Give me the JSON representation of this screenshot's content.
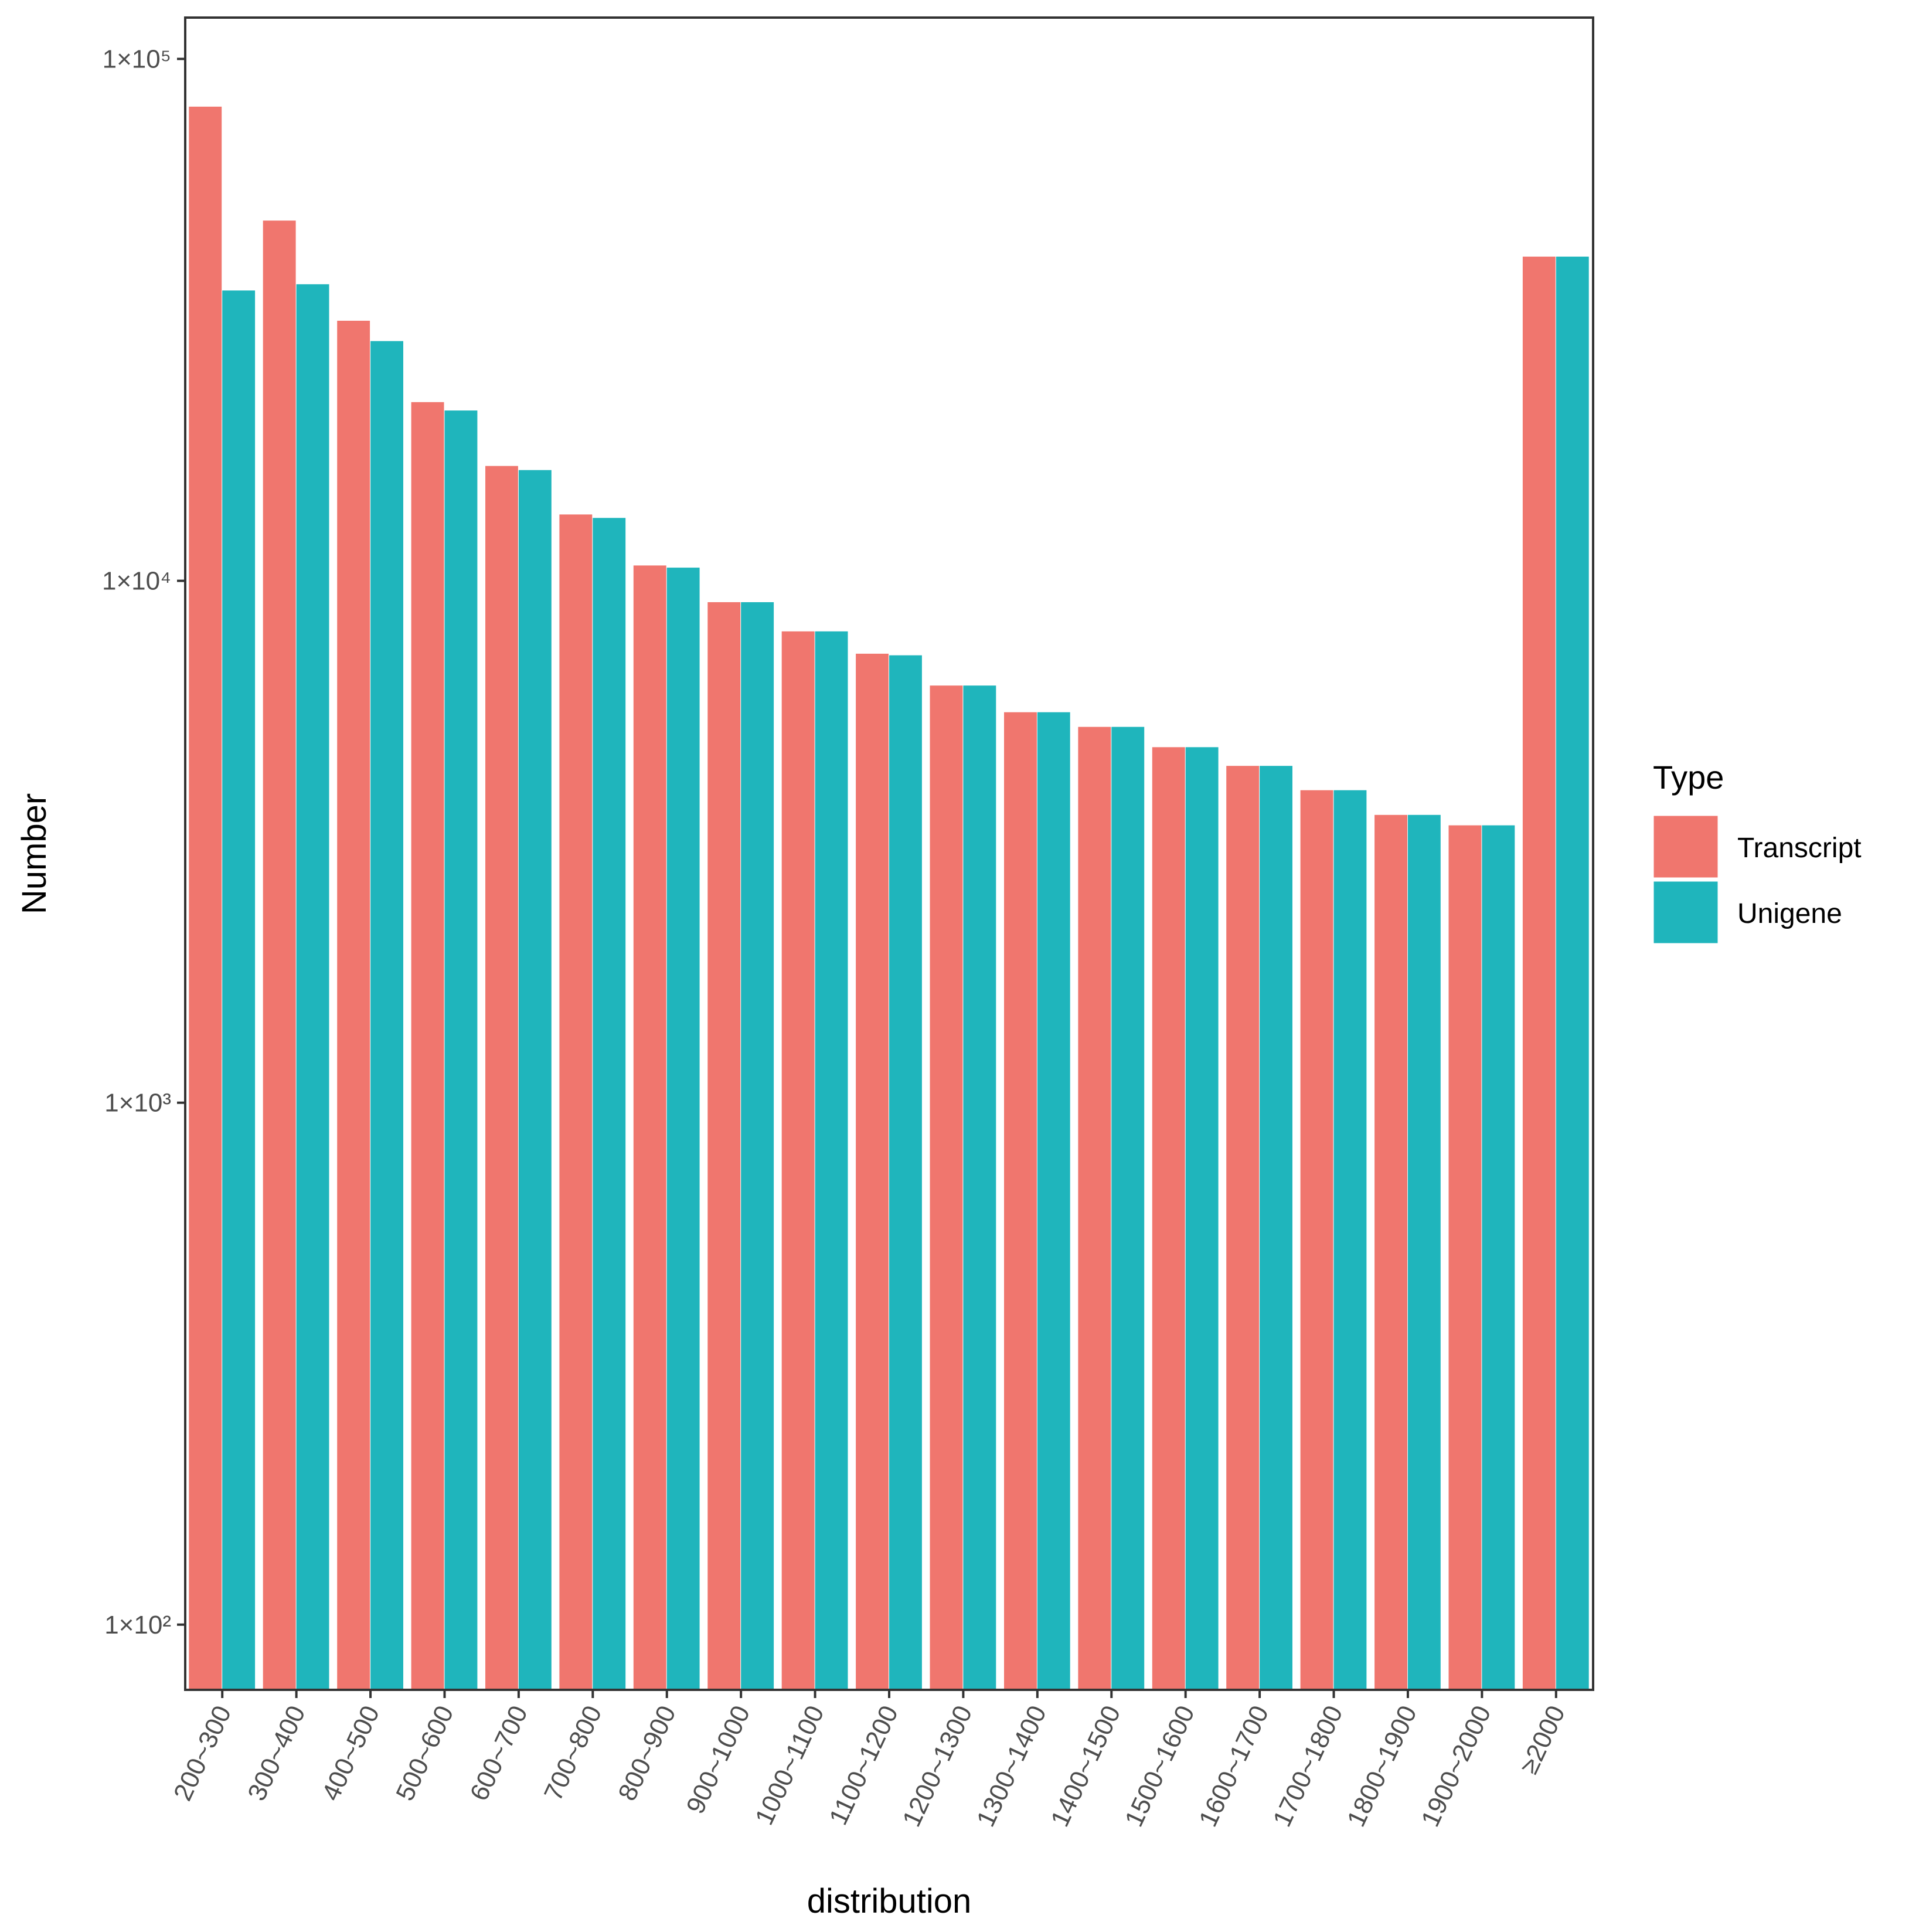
{
  "chart_data": {
    "type": "bar",
    "title": "",
    "xlabel": "distribution",
    "ylabel": "Number",
    "y_scale": "log10",
    "ylim": [
      75,
      120000
    ],
    "grid": false,
    "legend_position": "right",
    "legend_title": "Type",
    "categories": [
      "200~300",
      "300~400",
      "400~500",
      "500~600",
      "600~700",
      "700~800",
      "800~900",
      "900~1000",
      "1000~1100",
      "1100~1200",
      "1200~1300",
      "1300~1400",
      "1400~1500",
      "1500~1600",
      "1600~1700",
      "1700~1800",
      "1800~1900",
      "1900~2000",
      "≥2000"
    ],
    "series": [
      {
        "name": "Transcript",
        "color": "#F0766E",
        "values": [
          81000,
          49000,
          31500,
          22000,
          16600,
          13400,
          10700,
          9100,
          8000,
          7250,
          6300,
          5600,
          5250,
          4800,
          4420,
          3970,
          3560,
          3400,
          41800
        ]
      },
      {
        "name": "Unigene",
        "color": "#1FB5BC",
        "values": [
          36000,
          37000,
          28800,
          21200,
          16300,
          13200,
          10600,
          9100,
          8000,
          7200,
          6300,
          5600,
          5250,
          4800,
          4420,
          3970,
          3560,
          3400,
          41800
        ]
      }
    ],
    "y_ticks": [
      {
        "value": 100000,
        "label": "1×10⁵"
      },
      {
        "value": 10000,
        "label": "1×10⁴"
      },
      {
        "value": 1000,
        "label": "1×10³"
      },
      {
        "value": 100,
        "label": "1×10²"
      }
    ]
  }
}
